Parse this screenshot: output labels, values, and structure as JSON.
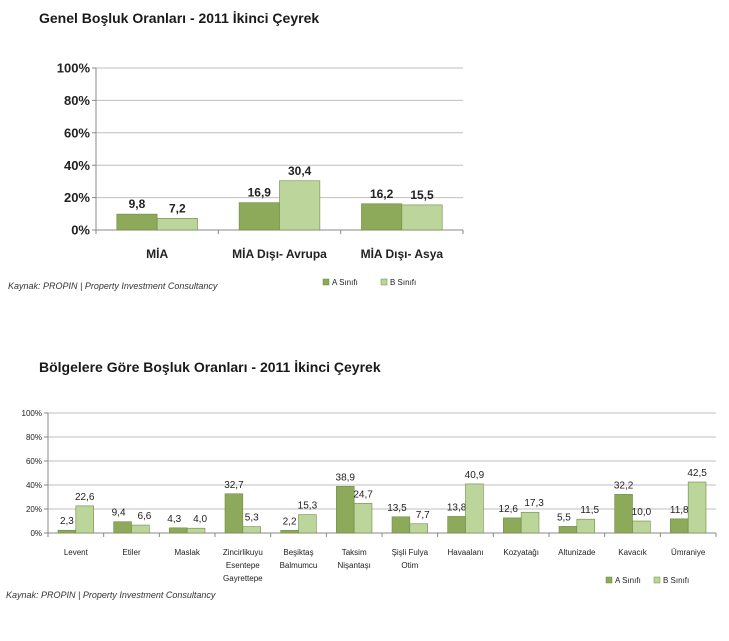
{
  "colors": {
    "a": "#8caa5a",
    "b": "#bcd59a",
    "axis": "#888888",
    "grid": "#bfbfbf"
  },
  "chart_data": [
    {
      "type": "bar",
      "title": "Genel Boşluk Oranları - 2011 İkinci Çeyrek",
      "categories": [
        "MİA",
        "MİA Dışı- Avrupa",
        "MİA Dışı- Asya"
      ],
      "series": [
        {
          "name": "A Sınıfı",
          "values": [
            9.8,
            16.9,
            16.2
          ],
          "labels": [
            "9,8",
            "16,9",
            "16,2"
          ]
        },
        {
          "name": "B Sınıfı",
          "values": [
            7.2,
            30.4,
            15.5
          ],
          "labels": [
            "7,2",
            "30,4",
            "15,5"
          ]
        }
      ],
      "yticks": [
        "0%",
        "20%",
        "40%",
        "60%",
        "80%",
        "100%"
      ],
      "ylim": [
        0,
        100
      ],
      "grid": true,
      "legend": "bottom-right",
      "source": "Kaynak: PROPIN | Property Investment Consultancy"
    },
    {
      "type": "bar",
      "title": "Bölgelere Göre Boşluk Oranları - 2011 İkinci Çeyrek",
      "categories": [
        [
          "Levent"
        ],
        [
          "Etiler"
        ],
        [
          "Maslak"
        ],
        [
          "Zincirlikuyu",
          "Esentepe",
          "Gayrettepe"
        ],
        [
          "Beşiktaş",
          "Balmumcu"
        ],
        [
          "Taksim",
          "Nişantaşı"
        ],
        [
          "Şişli Fulya",
          "Otim"
        ],
        [
          "Havaalanı"
        ],
        [
          "Kozyatağı"
        ],
        [
          "Altunizade"
        ],
        [
          "Kavacık"
        ],
        [
          "Ümraniye"
        ]
      ],
      "series": [
        {
          "name": "A Sınıfı",
          "values": [
            2.3,
            9.4,
            4.3,
            32.7,
            2.2,
            38.9,
            13.5,
            13.8,
            12.6,
            5.5,
            32.2,
            11.8
          ],
          "labels": [
            "2,3",
            "9,4",
            "4,3",
            "32,7",
            "2,2",
            "38,9",
            "13,5",
            "13,8",
            "12,6",
            "5,5",
            "32,2",
            "11,8"
          ]
        },
        {
          "name": "B Sınıfı",
          "values": [
            22.6,
            6.6,
            4.0,
            5.3,
            15.3,
            24.7,
            7.7,
            40.9,
            17.3,
            11.5,
            10.0,
            42.5
          ],
          "labels": [
            "22,6",
            "6,6",
            "4,0",
            "5,3",
            "15,3",
            "24,7",
            "7,7",
            "40,9",
            "17,3",
            "11,5",
            "10,0",
            "42,5"
          ]
        }
      ],
      "yticks": [
        "0%",
        "20%",
        "40%",
        "60%",
        "80%",
        "100%"
      ],
      "ylim": [
        0,
        100
      ],
      "grid": true,
      "legend": "bottom-right",
      "source": "Kaynak: PROPIN | Property Investment Consultancy"
    }
  ]
}
